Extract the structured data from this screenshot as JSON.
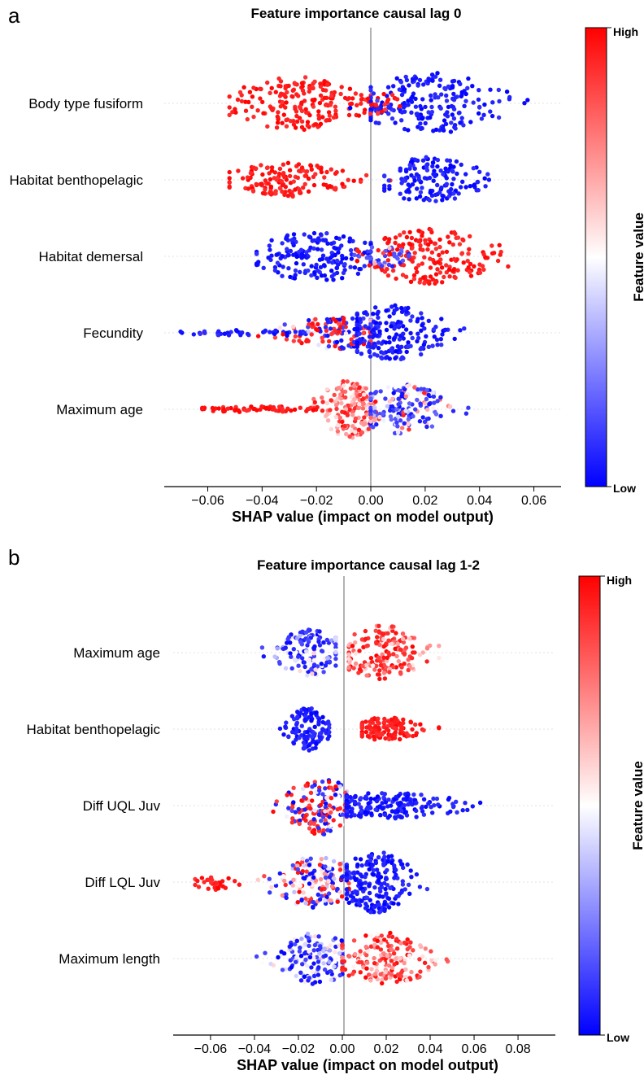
{
  "colors": {
    "high": "#ff0000",
    "mid": "#ffffff",
    "low": "#0000ff"
  },
  "chart_data": [
    {
      "type": "scatter",
      "panel": "a",
      "title": "Feature importance causal lag 0",
      "xlabel": "SHAP value (impact on model output)",
      "xlim": [
        -0.076,
        0.07
      ],
      "xticks": [
        -0.06,
        -0.04,
        -0.02,
        0.0,
        0.02,
        0.04,
        0.06
      ],
      "xtick_labels": [
        "−0.06",
        "−0.04",
        "−0.02",
        "0.00",
        "0.02",
        "0.04",
        "0.06"
      ],
      "colorbar": {
        "title": "Feature value",
        "high_label": "High",
        "low_label": "Low"
      },
      "features": [
        {
          "name": "Body type fusiform",
          "half_height": 0.4,
          "clusters": [
            {
              "center": -0.028,
              "spread": 0.012,
              "min": -0.052,
              "max": 0.0,
              "height": 0.9,
              "count": 190,
              "colorMode": "high"
            },
            {
              "center": 0.022,
              "spread": 0.014,
              "min": 0.0,
              "max": 0.062,
              "height": 1.0,
              "count": 200,
              "colorMode": "low"
            },
            {
              "center": 0.002,
              "spread": 0.006,
              "min": -0.008,
              "max": 0.014,
              "height": 0.35,
              "count": 40,
              "colorMode": "mixhigh"
            }
          ]
        },
        {
          "name": "Habitat benthopelagic",
          "half_height": 0.3,
          "clusters": [
            {
              "center": -0.03,
              "spread": 0.012,
              "min": -0.052,
              "max": 0.008,
              "height": 0.75,
              "count": 150,
              "colorMode": "high"
            },
            {
              "center": 0.022,
              "spread": 0.01,
              "min": 0.005,
              "max": 0.047,
              "height": 1.0,
              "count": 150,
              "colorMode": "low"
            }
          ]
        },
        {
          "name": "Habitat demersal",
          "half_height": 0.36,
          "clusters": [
            {
              "center": -0.02,
              "spread": 0.012,
              "min": -0.042,
              "max": 0.0,
              "height": 0.9,
              "count": 180,
              "colorMode": "low"
            },
            {
              "center": 0.022,
              "spread": 0.013,
              "min": -0.005,
              "max": 0.051,
              "height": 1.0,
              "count": 190,
              "colorMode": "high"
            },
            {
              "center": 0.004,
              "spread": 0.006,
              "min": -0.01,
              "max": 0.014,
              "height": 0.4,
              "count": 40,
              "colorMode": "mixlow"
            }
          ]
        },
        {
          "name": "Fecundity",
          "half_height": 0.36,
          "clusters": [
            {
              "center": -0.01,
              "spread": 0.012,
              "min": -0.07,
              "max": 0.0,
              "height": 0.6,
              "count": 170,
              "colorMode": "mix"
            },
            {
              "center": 0.008,
              "spread": 0.01,
              "min": -0.005,
              "max": 0.043,
              "height": 1.0,
              "count": 200,
              "colorMode": "low"
            },
            {
              "center": -0.045,
              "spread": 0.014,
              "min": -0.07,
              "max": -0.025,
              "height": 0.1,
              "count": 40,
              "colorMode": "low"
            }
          ]
        },
        {
          "name": "Maximum age",
          "half_height": 0.38,
          "clusters": [
            {
              "center": -0.008,
              "spread": 0.006,
              "min": -0.021,
              "max": 0.003,
              "height": 1.0,
              "count": 160,
              "colorMode": "pink"
            },
            {
              "center": -0.04,
              "spread": 0.012,
              "min": -0.062,
              "max": -0.015,
              "height": 0.1,
              "count": 70,
              "colorMode": "high"
            },
            {
              "center": 0.012,
              "spread": 0.009,
              "min": 0.0,
              "max": 0.037,
              "height": 0.85,
              "count": 170,
              "colorMode": "mixlow"
            }
          ]
        }
      ]
    },
    {
      "type": "scatter",
      "panel": "b",
      "title": "Feature importance causal lag 1-2",
      "xlabel": "SHAP value (impact on model output)",
      "xlim": [
        -0.077,
        0.097
      ],
      "xticks": [
        -0.06,
        -0.04,
        -0.02,
        0.0,
        0.02,
        0.04,
        0.06,
        0.08
      ],
      "xtick_labels": [
        "−0.06",
        "−0.04",
        "−0.02",
        "0.00",
        "0.02",
        "0.04",
        "0.06",
        "0.08"
      ],
      "colorbar": {
        "title": "Feature value",
        "high_label": "High",
        "low_label": "Low"
      },
      "features": [
        {
          "name": "Maximum age",
          "half_height": 0.36,
          "clusters": [
            {
              "center": -0.015,
              "spread": 0.008,
              "min": -0.048,
              "max": -0.003,
              "height": 0.85,
              "count": 150,
              "colorMode": "lowmixlight"
            },
            {
              "center": 0.018,
              "spread": 0.01,
              "min": 0.003,
              "max": 0.044,
              "height": 1.0,
              "count": 180,
              "colorMode": "highmixlight"
            }
          ]
        },
        {
          "name": "Habitat benthopelagic",
          "half_height": 0.28,
          "clusters": [
            {
              "center": -0.016,
              "spread": 0.005,
              "min": -0.033,
              "max": -0.006,
              "height": 1.0,
              "count": 120,
              "colorMode": "low"
            },
            {
              "center": 0.02,
              "spread": 0.008,
              "min": 0.009,
              "max": 0.044,
              "height": 0.55,
              "count": 130,
              "colorMode": "high"
            }
          ]
        },
        {
          "name": "Diff UQL Juv",
          "half_height": 0.38,
          "clusters": [
            {
              "center": -0.01,
              "spread": 0.008,
              "min": -0.047,
              "max": 0.002,
              "height": 1.0,
              "count": 160,
              "colorMode": "mix"
            },
            {
              "center": 0.02,
              "spread": 0.018,
              "min": 0.002,
              "max": 0.09,
              "height": 0.45,
              "count": 200,
              "colorMode": "low"
            }
          ]
        },
        {
          "name": "Diff LQL Juv",
          "half_height": 0.4,
          "clusters": [
            {
              "center": -0.012,
              "spread": 0.01,
              "min": -0.067,
              "max": 0.003,
              "height": 0.85,
              "count": 170,
              "colorMode": "mixlight"
            },
            {
              "center": 0.015,
              "spread": 0.009,
              "min": 0.002,
              "max": 0.063,
              "height": 1.0,
              "count": 190,
              "colorMode": "low"
            },
            {
              "center": -0.058,
              "spread": 0.005,
              "min": -0.067,
              "max": -0.045,
              "height": 0.25,
              "count": 30,
              "colorMode": "high"
            }
          ]
        },
        {
          "name": "Maximum length",
          "half_height": 0.34,
          "clusters": [
            {
              "center": -0.012,
              "spread": 0.009,
              "min": -0.039,
              "max": 0.0,
              "height": 1.0,
              "count": 160,
              "colorMode": "lowmixlight"
            },
            {
              "center": 0.02,
              "spread": 0.012,
              "min": 0.0,
              "max": 0.048,
              "height": 1.0,
              "count": 180,
              "colorMode": "highmixlight"
            }
          ]
        }
      ]
    }
  ]
}
